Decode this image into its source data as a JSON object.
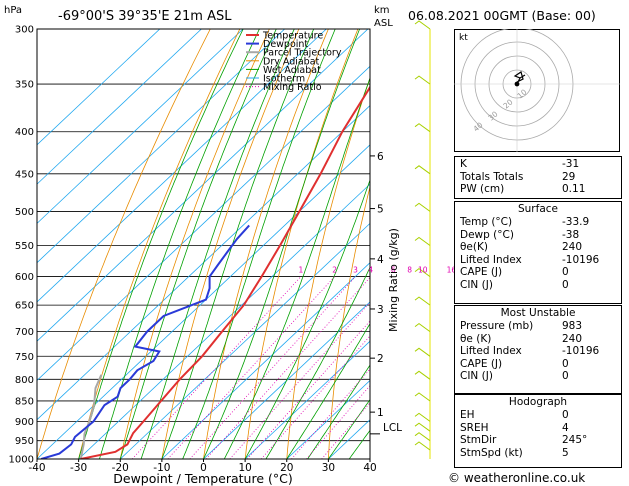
{
  "header": {
    "location": "-69°00'S  39°35'E  21m  ASL",
    "datetime": "06.08.2021  00GMT  (Base: 00)",
    "hpa_label": "hPa",
    "km_label": "km",
    "asl_label": "ASL",
    "mixing_label": "Mixing Ratio (g/kg)",
    "lcl_label": "LCL",
    "copyright": "© weatheronline.co.uk"
  },
  "chart_data": {
    "type": "line",
    "xlabel": "Dewpoint / Temperature (°C)",
    "ylabel": "hPa",
    "xlim": [
      -40,
      40
    ],
    "ylim": [
      1000,
      300
    ],
    "x_ticks": [
      -40,
      -30,
      -20,
      -10,
      0,
      10,
      20,
      30,
      40
    ],
    "pressure_ticks": [
      300,
      350,
      400,
      450,
      500,
      550,
      600,
      650,
      700,
      750,
      800,
      850,
      900,
      950,
      1000
    ],
    "km_ticks": [
      {
        "km": "1",
        "p": 877
      },
      {
        "km": "2",
        "p": 754
      },
      {
        "km": "3",
        "p": 657
      },
      {
        "km": "4",
        "p": 571
      },
      {
        "km": "5",
        "p": 496
      },
      {
        "km": "6",
        "p": 428
      }
    ],
    "lcl_pressure": 932,
    "mixing_ratio_labels": [
      "1",
      "2",
      "3",
      "4",
      "6",
      "8",
      "10",
      "16",
      "20",
      "25"
    ],
    "mixing_ratio_values": [
      1,
      2,
      3,
      4,
      6,
      8,
      10,
      16,
      20,
      25
    ],
    "legend": [
      "Temperature",
      "Dewpoint",
      "Parcel Trajectory",
      "Dry Adiabat",
      "Wet Adiabat",
      "Isotherm",
      "Mixing Ratio"
    ],
    "colors": {
      "temperature": "#e03030",
      "dewpoint": "#2a3ad8",
      "parcel": "#a8a8a8",
      "dry_adiabat": "#e88c00",
      "wet_adiabat": "#00a000",
      "isotherm": "#20a8f0",
      "mixing_ratio": "#e000b0"
    },
    "temperature": [
      [
        1000,
        -29.5
      ],
      [
        980,
        -23
      ],
      [
        960,
        -22
      ],
      [
        930,
        -23.5
      ],
      [
        900,
        -24
      ],
      [
        850,
        -25
      ],
      [
        800,
        -26
      ],
      [
        750,
        -26.5
      ],
      [
        700,
        -28
      ],
      [
        650,
        -29.5
      ],
      [
        600,
        -32.5
      ],
      [
        550,
        -36
      ],
      [
        500,
        -40
      ],
      [
        450,
        -44.5
      ],
      [
        400,
        -50
      ],
      [
        350,
        -55
      ],
      [
        300,
        -61
      ]
    ],
    "dewpoint": [
      [
        1000,
        -39
      ],
      [
        985,
        -36
      ],
      [
        960,
        -35.5
      ],
      [
        940,
        -36.5
      ],
      [
        900,
        -36
      ],
      [
        860,
        -37.5
      ],
      [
        840,
        -36.5
      ],
      [
        820,
        -38
      ],
      [
        800,
        -38
      ],
      [
        780,
        -38.5
      ],
      [
        760,
        -37
      ],
      [
        740,
        -38
      ],
      [
        730,
        -45
      ],
      [
        700,
        -46
      ],
      [
        670,
        -46
      ],
      [
        640,
        -40
      ],
      [
        620,
        -42
      ],
      [
        600,
        -45
      ],
      [
        580,
        -46
      ],
      [
        560,
        -47
      ],
      [
        540,
        -48
      ],
      [
        520,
        -48.5
      ]
    ],
    "parcel": [
      [
        1000,
        -29.5
      ],
      [
        960,
        -32.5
      ],
      [
        932,
        -35
      ],
      [
        900,
        -37
      ],
      [
        860,
        -40
      ],
      [
        820,
        -44
      ],
      [
        790,
        -46
      ]
    ]
  },
  "hodograph": {
    "title": "kt",
    "ring_labels": [
      "10",
      "20",
      "30",
      "40"
    ]
  },
  "indices": {
    "rows": [
      {
        "label": "K",
        "value": "-31"
      },
      {
        "label": "Totals Totals",
        "value": "29"
      },
      {
        "label": "PW (cm)",
        "value": "0.11"
      }
    ]
  },
  "surface": {
    "title": "Surface",
    "rows": [
      {
        "label": "Temp (°C)",
        "value": "-33.9"
      },
      {
        "label": "Dewp (°C)",
        "value": "-38"
      },
      {
        "label": "θe(K)",
        "value": "240"
      },
      {
        "label": "Lifted Index",
        "value": "-10196"
      },
      {
        "label": "CAPE (J)",
        "value": "0"
      },
      {
        "label": "CIN (J)",
        "value": "0"
      }
    ]
  },
  "most_unstable": {
    "title": "Most Unstable",
    "rows": [
      {
        "label": "Pressure (mb)",
        "value": "983"
      },
      {
        "label": "θe (K)",
        "value": "240"
      },
      {
        "label": "Lifted Index",
        "value": "-10196"
      },
      {
        "label": "CAPE (J)",
        "value": "0"
      },
      {
        "label": "CIN (J)",
        "value": "0"
      }
    ]
  },
  "hodograph_table": {
    "title": "Hodograph",
    "rows": [
      {
        "label": "EH",
        "value": "0"
      },
      {
        "label": "SREH",
        "value": "4"
      },
      {
        "label": "StmDir",
        "value": "245°"
      },
      {
        "label": "StmSpd (kt)",
        "value": "5"
      }
    ]
  }
}
